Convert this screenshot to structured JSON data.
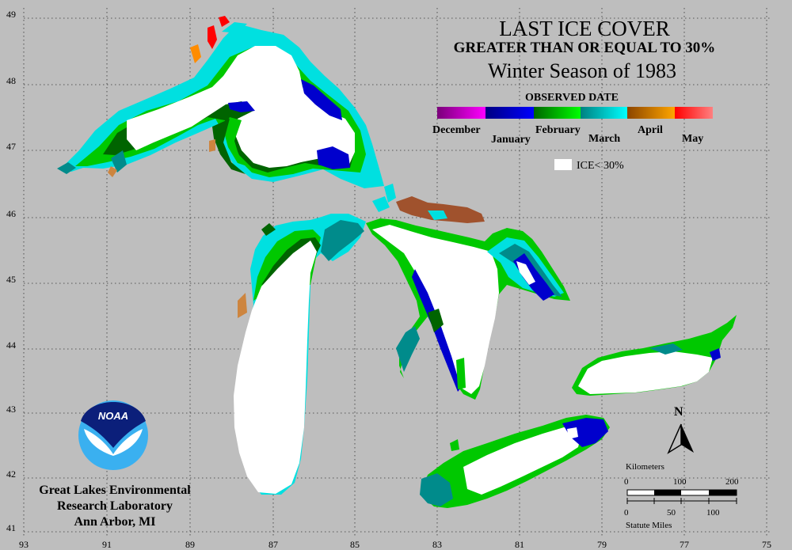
{
  "title": "LAST ICE COVER",
  "subtitle": "GREATER THAN OR EQUAL TO 30%",
  "season": "Winter Season of 1983",
  "legend": {
    "heading": "OBSERVED DATE",
    "months": [
      "December",
      "January",
      "February",
      "March",
      "April",
      "May"
    ],
    "colors": [
      [
        "#7a007a",
        "#ff00ff"
      ],
      [
        "#000080",
        "#0000ff"
      ],
      [
        "#006400",
        "#00ff00"
      ],
      [
        "#008080",
        "#00ffff"
      ],
      [
        "#8b4500",
        "#ffa500"
      ],
      [
        "#ff0000",
        "#ff8080"
      ]
    ],
    "ice_label": "ICE< 30%"
  },
  "axes": {
    "lat": [
      "49",
      "48",
      "47",
      "46",
      "45",
      "44",
      "43",
      "42",
      "41"
    ],
    "lon": [
      "93",
      "91",
      "89",
      "87",
      "85",
      "83",
      "81",
      "79",
      "77",
      "75"
    ]
  },
  "north_label": "N",
  "scale": {
    "km_title": "Kilometers",
    "km_ticks": [
      "0",
      "100",
      "200"
    ],
    "mi_ticks": [
      "0",
      "50",
      "100"
    ],
    "mi_title": "Statute Miles"
  },
  "org": {
    "logo_text": "NOAA",
    "line1": "Great Lakes Environmental",
    "line2": "Research Laboratory",
    "line3": "Ann Arbor, MI"
  },
  "colors": {
    "background": "#bebebe",
    "open_ice": "#ffffff",
    "jan": "#0000cd",
    "feb_dark": "#006400",
    "feb": "#00c800",
    "mar_dark": "#008b8b",
    "mar": "#00e0e0",
    "apr": "#a0522d",
    "may": "#ff0000"
  }
}
